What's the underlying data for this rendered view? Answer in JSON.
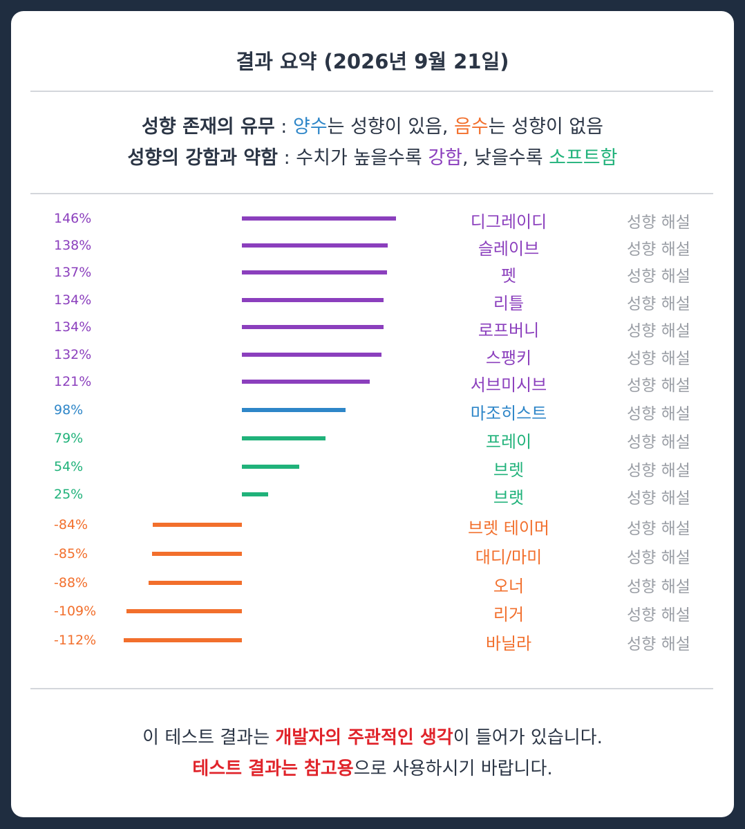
{
  "title": "결과 요약 (2026년 9월 21일)",
  "legend": {
    "line1": {
      "lead": "성향 존재의 유무",
      "sep": " : ",
      "pos_word": "양수",
      "mid1": "는 성향이 있음, ",
      "neg_word": "음수",
      "mid2": "는 성향이 없음"
    },
    "line2": {
      "lead": "성향의 강함과 약함",
      "sep": " : ",
      "mid1": "수치가 높을수록 ",
      "strong_word": "강함",
      "mid2": ", 낮을수록 ",
      "soft_word": "소프트함"
    }
  },
  "colors": {
    "strong": "#8b3fbd",
    "pos": "#2e86c8",
    "soft": "#20b27a",
    "neg": "#f26f2c"
  },
  "chart_data": {
    "type": "bar",
    "orientation": "horizontal",
    "zero_axis": true,
    "unit": "%",
    "rows": [
      {
        "label": "디그레이디",
        "value": 146,
        "value_text": "146%",
        "color": "strong",
        "action": "성향 해설"
      },
      {
        "label": "슬레이브",
        "value": 138,
        "value_text": "138%",
        "color": "strong",
        "action": "성향 해설"
      },
      {
        "label": "펫",
        "value": 137,
        "value_text": "137%",
        "color": "strong",
        "action": "성향 해설"
      },
      {
        "label": "리틀",
        "value": 134,
        "value_text": "134%",
        "color": "strong",
        "action": "성향 해설"
      },
      {
        "label": "로프버니",
        "value": 134,
        "value_text": "134%",
        "color": "strong",
        "action": "성향 해설"
      },
      {
        "label": "스팽키",
        "value": 132,
        "value_text": "132%",
        "color": "strong",
        "action": "성향 해설"
      },
      {
        "label": "서브미시브",
        "value": 121,
        "value_text": "121%",
        "color": "strong",
        "action": "성향 해설"
      },
      {
        "label": "마조히스트",
        "value": 98,
        "value_text": "98%",
        "color": "pos",
        "action": "성향 해설"
      },
      {
        "label": "프레이",
        "value": 79,
        "value_text": "79%",
        "color": "soft",
        "action": "성향 해설"
      },
      {
        "label": "브렛",
        "value": 54,
        "value_text": "54%",
        "color": "soft",
        "action": "성향 해설"
      },
      {
        "label": "브랫",
        "value": 25,
        "value_text": "25%",
        "color": "soft",
        "action": "성향 해설"
      },
      {
        "label": "브렛 테이머",
        "value": -84,
        "value_text": "-84%",
        "color": "neg",
        "action": "성향 해설"
      },
      {
        "label": "대디/마미",
        "value": -85,
        "value_text": "-85%",
        "color": "neg",
        "action": "성향 해설"
      },
      {
        "label": "오너",
        "value": -88,
        "value_text": "-88%",
        "color": "neg",
        "action": "성향 해설"
      },
      {
        "label": "리거",
        "value": -109,
        "value_text": "-109%",
        "color": "neg",
        "action": "성향 해설"
      },
      {
        "label": "바닐라",
        "value": -112,
        "value_text": "-112%",
        "color": "neg",
        "action": "성향 해설"
      }
    ]
  },
  "footer": {
    "line1": {
      "pre": "이 테스트 결과는 ",
      "red": "개발자의 주관적인 생각",
      "post": "이 들어가 있습니다."
    },
    "line2": {
      "red": "테스트 결과는 참고용",
      "post": "으로 사용하시기 바랍니다."
    }
  }
}
